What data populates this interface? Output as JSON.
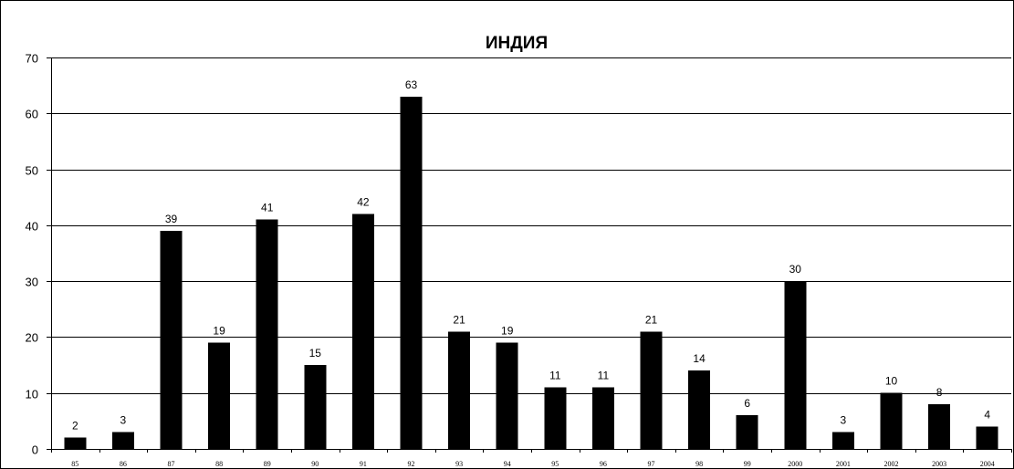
{
  "chart_data": {
    "type": "bar",
    "title": "ИНДИЯ",
    "xlabel": "",
    "ylabel": "",
    "ylim": [
      0,
      70
    ],
    "yticks": [
      0,
      10,
      20,
      30,
      40,
      50,
      60,
      70
    ],
    "grid": true,
    "legend": "none",
    "bar_color": "#000000",
    "categories": [
      "85",
      "86",
      "87",
      "88",
      "89",
      "90",
      "91",
      "92",
      "93",
      "94",
      "95",
      "96",
      "97",
      "98",
      "99",
      "2000",
      "2001",
      "2002",
      "2003",
      "2004"
    ],
    "values": [
      2,
      3,
      39,
      19,
      41,
      15,
      42,
      63,
      21,
      19,
      11,
      11,
      21,
      14,
      6,
      30,
      3,
      10,
      8,
      4
    ]
  }
}
